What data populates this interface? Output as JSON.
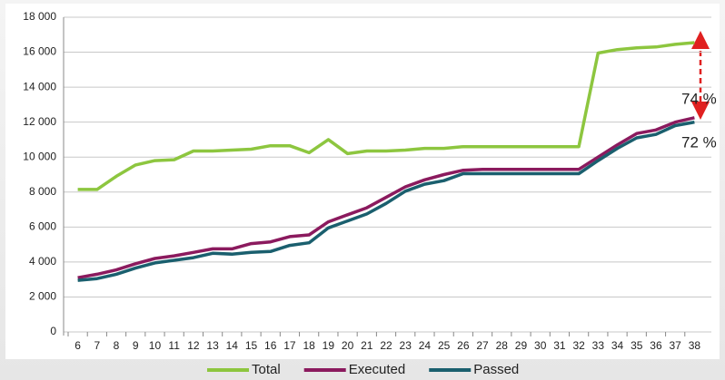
{
  "chart_data": {
    "type": "line",
    "categories": [
      "6",
      "7",
      "8",
      "9",
      "10",
      "11",
      "12",
      "13",
      "14",
      "15",
      "16",
      "17",
      "18",
      "19",
      "20",
      "21",
      "22",
      "23",
      "24",
      "25",
      "26",
      "27",
      "28",
      "29",
      "30",
      "31",
      "32",
      "33",
      "34",
      "35",
      "36",
      "37",
      "38"
    ],
    "series": [
      {
        "name": "Total",
        "color": "#8dc63f",
        "values": [
          8150,
          8150,
          8900,
          9550,
          9800,
          9850,
          10350,
          10350,
          10400,
          10450,
          10650,
          10650,
          10250,
          11000,
          10200,
          10350,
          10350,
          10400,
          10500,
          10500,
          10600,
          10600,
          10600,
          10600,
          10600,
          10600,
          10600,
          15950,
          16150,
          16250,
          16300,
          16450,
          16550
        ]
      },
      {
        "name": "Executed",
        "color": "#8b1a5e",
        "values": [
          3100,
          3300,
          3550,
          3900,
          4200,
          4350,
          4550,
          4750,
          4750,
          5050,
          5150,
          5450,
          5550,
          6300,
          6700,
          7100,
          7700,
          8300,
          8700,
          9000,
          9250,
          9300,
          9300,
          9300,
          9300,
          9300,
          9300,
          10000,
          10700,
          11350,
          11550,
          12000,
          12250
        ]
      },
      {
        "name": "Passed",
        "color": "#1a5f6e",
        "values": [
          2950,
          3050,
          3300,
          3650,
          3950,
          4100,
          4250,
          4500,
          4450,
          4550,
          4600,
          4950,
          5100,
          5950,
          6350,
          6750,
          7350,
          8050,
          8450,
          8650,
          9050,
          9050,
          9050,
          9050,
          9050,
          9050,
          9050,
          9800,
          10500,
          11100,
          11300,
          11800,
          12000
        ]
      }
    ],
    "ylim": [
      0,
      18000
    ],
    "yticks": [
      0,
      {
        "value": 2000,
        "label": "2 000"
      },
      {
        "value": 4000,
        "label": "4 000"
      },
      {
        "value": 6000,
        "label": "6 000"
      },
      {
        "value": 8000,
        "label": "8 000"
      },
      {
        "value": 10000,
        "label": "10 000"
      },
      {
        "value": 12000,
        "label": "12 000"
      },
      {
        "value": 14000,
        "label": "14 000"
      },
      {
        "value": 16000,
        "label": "16 000"
      },
      {
        "value": 18000,
        "label": "18 000"
      }
    ],
    "grid": true,
    "legend": "bottom",
    "annotations": [
      "74 %",
      "72 %"
    ]
  }
}
